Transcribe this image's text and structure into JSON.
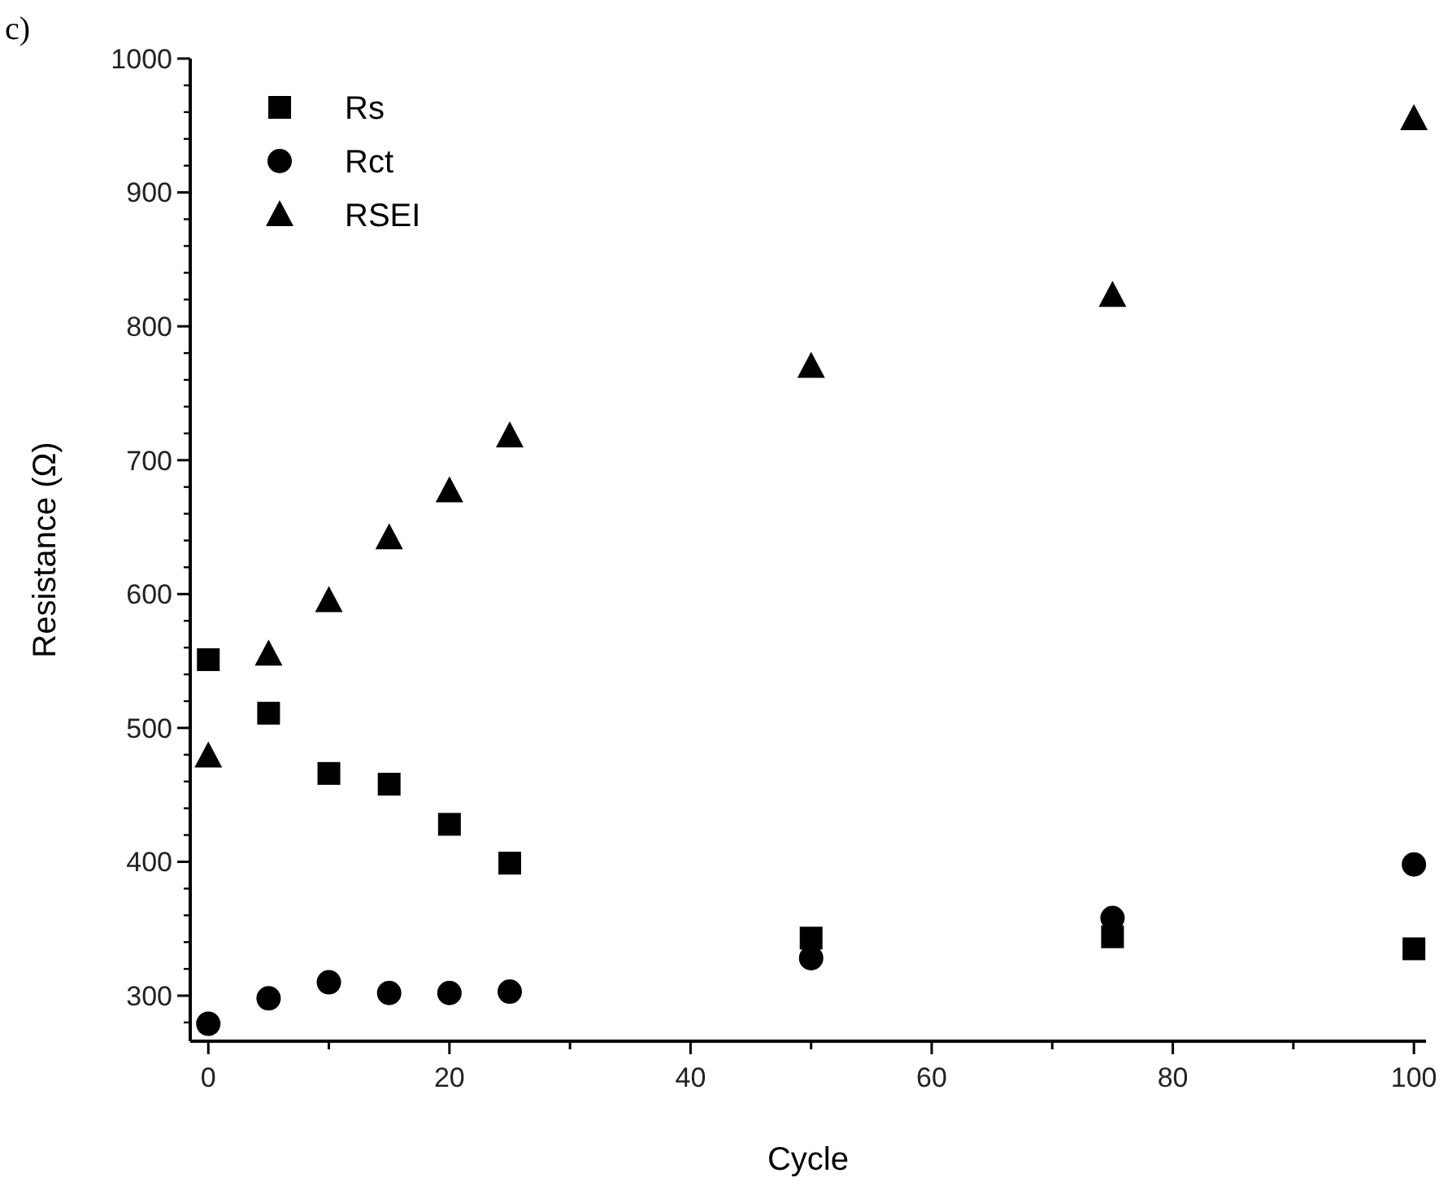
{
  "chart_data": {
    "type": "scatter",
    "title": "c)",
    "xlabel": "Cycle",
    "ylabel": "Resistance (Ω)",
    "xlim": [
      -1.5,
      101
    ],
    "ylim": [
      266,
      1000
    ],
    "xticks": [
      0,
      {
        "value": 10,
        "label": null
      },
      20,
      {
        "value": 30,
        "label": null
      },
      40,
      {
        "value": 50,
        "label": null
      },
      60,
      {
        "value": 70,
        "label": null
      },
      80,
      {
        "value": 90,
        "label": null
      },
      100
    ],
    "yticks": [
      300,
      400,
      500,
      600,
      700,
      800,
      900,
      1000
    ],
    "x": [
      0,
      5,
      10,
      15,
      20,
      25,
      50,
      75,
      100
    ],
    "series": [
      {
        "name": "Rs",
        "color": "#000000",
        "marker": "square",
        "values": [
          551,
          511,
          466,
          458,
          428,
          399,
          343,
          344,
          335
        ]
      },
      {
        "name": "Rct",
        "color": "#000000",
        "marker": "circle",
        "values": [
          279,
          298,
          310,
          302,
          302,
          303,
          328,
          358,
          398
        ]
      },
      {
        "name": "RSEI",
        "color": "#000000",
        "marker": "triangle",
        "values": [
          479,
          555,
          595,
          642,
          677,
          718,
          770,
          823,
          955
        ]
      }
    ],
    "legend": "top left",
    "grid": false
  }
}
